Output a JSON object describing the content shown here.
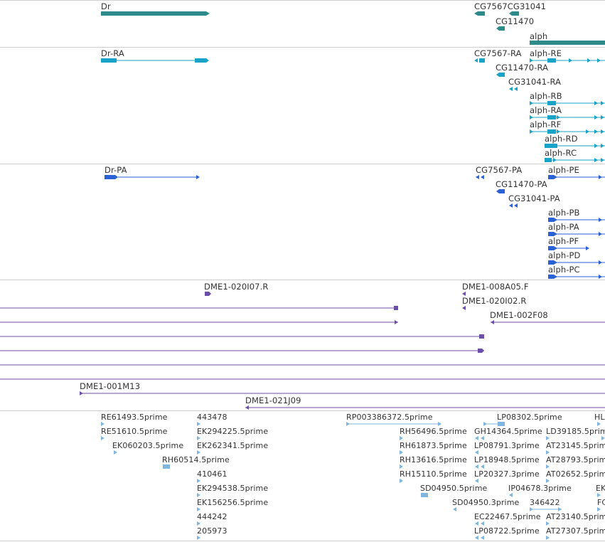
{
  "colors": {
    "gene": "#2e8b8b",
    "mrna": "#1aa3c8",
    "protein": "#2a62d6",
    "clone": "#6b4ea8",
    "est": "#7fb6e0",
    "divider": "#cfcfcf",
    "label": "#333333"
  },
  "icons": {
    "arrow_right": "triangle-right-icon",
    "arrow_left": "triangle-left-icon"
  },
  "tracks": {
    "genes": {
      "labels": {
        "dr": "Dr",
        "cg7567cg31041": "CG7567CG31041",
        "cg11470": "CG11470",
        "alph": "alph"
      }
    },
    "mrnas": {
      "labels": {
        "dr_ra": "Dr-RA",
        "cg7567_ra": "CG7567-RA",
        "alph_re": "alph-RE",
        "cg11470_ra": "CG11470-RA",
        "cg31041_ra": "CG31041-RA",
        "alph_rb": "alph-RB",
        "alph_ra": "alph-RA",
        "alph_rf": "alph-RF",
        "alph_rd": "alph-RD",
        "alph_rc": "alph-RC"
      }
    },
    "proteins": {
      "labels": {
        "dr_pa": "Dr-PA",
        "cg7567_pa": "CG7567-PA",
        "alph_pe": "alph-PE",
        "cg11470_pa": "CG11470-PA",
        "cg31041_pa": "CG31041-PA",
        "alph_pb": "alph-PB",
        "alph_pa": "alph-PA",
        "alph_pf": "alph-PF",
        "alph_pd": "alph-PD",
        "alph_pc": "alph-PC"
      }
    },
    "clones": {
      "labels": {
        "c020i07": "DME1-020I07.R",
        "c008a05": "DME1-008A05.F",
        "c020i02": "DME1-020I02.R",
        "c002f08": "DME1-002F08",
        "c001m13": "DME1-001M13",
        "c021j09": "DME1-021J09"
      }
    },
    "ests": {
      "labels": {
        "re61493": "RE61493.5prime",
        "e443478": "443478",
        "rp003386372": "RP003386372.5prime",
        "lp08302": "LP08302.5prime",
        "hl": "HL",
        "re51610": "RE51610.5prime",
        "ek294225": "EK294225.5prime",
        "rh56496": "RH56496.5prime",
        "gh14364": "GH14364.5prime",
        "ld39185": "LD39185.5prime",
        "ek060203": "EK060203.5prime",
        "ek262341": "EK262341.5prime",
        "rh61873": "RH61873.5prime",
        "lp08791": "LP08791.3prime",
        "at23145": "AT23145.5prime",
        "rh60514": "RH60514.5prime",
        "rh13616": "RH13616.5prime",
        "lp18948": "LP18948.5prime",
        "at28793": "AT28793.5prime",
        "e410461": "410461",
        "rh15110": "RH15110.5prime",
        "lp20327": "LP20327.3prime",
        "at02652": "AT02652.5prime",
        "ek294538": "EK294538.5prime",
        "sd04950_5": "SD04950.5prime",
        "ip04678": "IP04678.3prime",
        "ek_cut": "EK",
        "ek156256": "EK156256.5prime",
        "sd04950_3": "SD04950.3prime",
        "e346422": "346422",
        "fc_cut": "FC",
        "e444242": "444242",
        "ec22467": "EC22467.5prime",
        "at23140": "AT23140.5prime",
        "e205973": "205973",
        "lp08722": "LP08722.5prime",
        "at27307": "AT27307.5prime"
      }
    }
  }
}
